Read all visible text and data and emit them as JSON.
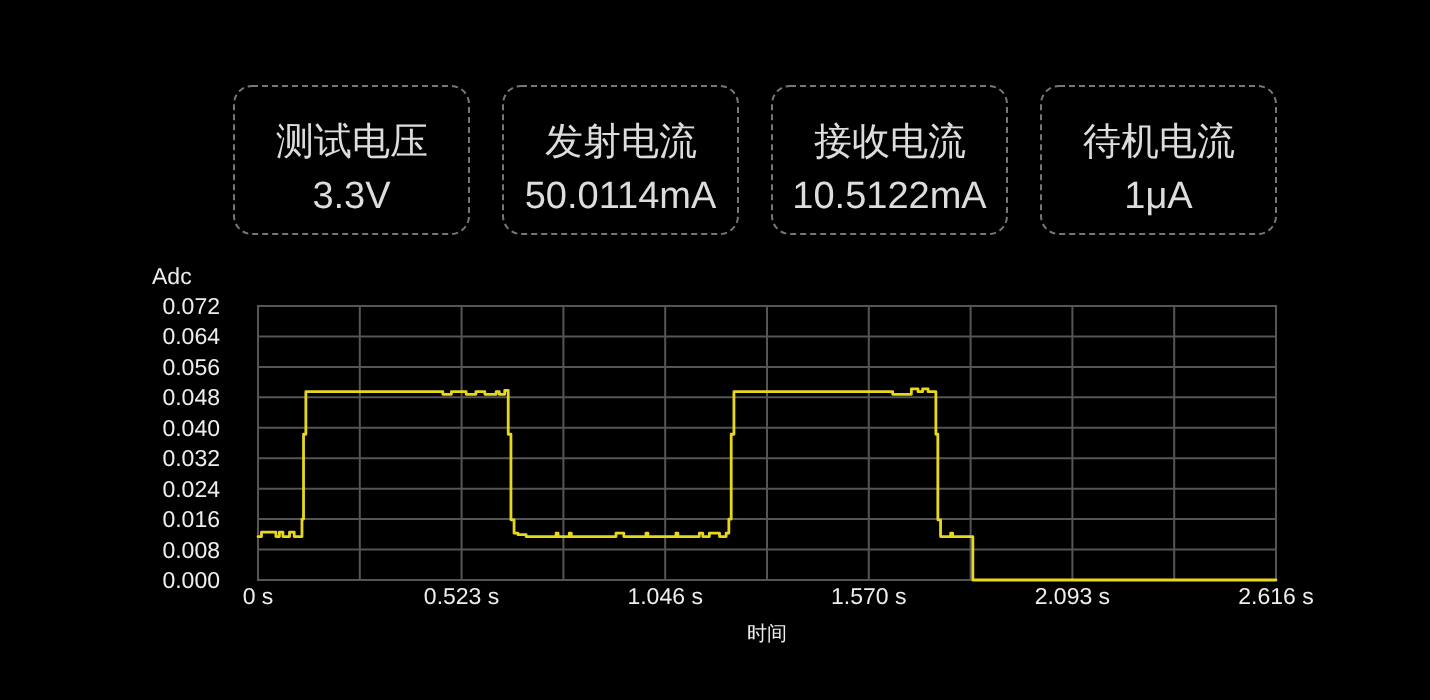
{
  "chart_data": [
    {
      "type": "other",
      "annotations": [
        "测试电压",
        "3.3V",
        "发射电流",
        "50.0114mA",
        "接收电流",
        "10.5122mA",
        "待机电流",
        "1μA"
      ]
    },
    {
      "type": "step",
      "xlabel": "时间",
      "ylabel": "Adc",
      "grid": true,
      "xlim": [
        0,
        2.616
      ],
      "xticks": [
        {
          "value": 0,
          "label": "0 s"
        },
        {
          "value": 0.2616,
          "label": null
        },
        {
          "value": 0.5232,
          "label": "0.523 s"
        },
        {
          "value": 0.7848,
          "label": null
        },
        {
          "value": 1.0464,
          "label": "1.046 s"
        },
        {
          "value": 1.308,
          "label": null
        },
        {
          "value": 1.5696,
          "label": "1.570 s"
        },
        {
          "value": 1.8312,
          "label": null
        },
        {
          "value": 2.0928,
          "label": "2.093 s"
        },
        {
          "value": 2.3544,
          "label": null
        },
        {
          "value": 2.616,
          "label": "2.616 s"
        }
      ],
      "ylim": [
        0,
        0.072
      ],
      "yticks": [
        {
          "value": 0,
          "label": "0.000"
        },
        {
          "value": 0.008,
          "label": "0.008"
        },
        {
          "value": 0.016,
          "label": "0.016"
        },
        {
          "value": 0.024,
          "label": "0.024"
        },
        {
          "value": 0.032,
          "label": "0.032"
        },
        {
          "value": 0.04,
          "label": "0.040"
        },
        {
          "value": 0.048,
          "label": "0.048"
        },
        {
          "value": 0.056,
          "label": "0.056"
        },
        {
          "value": 0.064,
          "label": "0.064"
        },
        {
          "value": 0.072,
          "label": "0.072"
        }
      ],
      "series": [
        {
          "color": "#e8d81c",
          "x": [
            0,
            0.009,
            0.046,
            0.055,
            0.064,
            0.081,
            0.093,
            0.113,
            0.117,
            0.123,
            0.475,
            0.497,
            0.535,
            0.56,
            0.583,
            0.612,
            0.62,
            0.634,
            0.643,
            0.65,
            0.658,
            0.668,
            0.689,
            0.766,
            0.771,
            0.8,
            0.805,
            0.92,
            0.94,
            0.997,
            1.002,
            1.074,
            1.079,
            1.134,
            1.143,
            1.16,
            1.186,
            1.203,
            1.21,
            1.216,
            1.223,
            1.631,
            1.679,
            1.696,
            1.708,
            1.722,
            1.742,
            1.747,
            1.754,
            1.78,
            1.785,
            1.837,
            2.616
          ],
          "values": [
            0.0114,
            0.0126,
            0.0114,
            0.0126,
            0.0114,
            0.0126,
            0.0114,
            0.016,
            0.0383,
            0.0495,
            0.0488,
            0.0495,
            0.0488,
            0.0495,
            0.0488,
            0.0495,
            0.0488,
            0.0498,
            0.0383,
            0.0158,
            0.0123,
            0.0119,
            0.0114,
            0.0123,
            0.0114,
            0.0123,
            0.0114,
            0.0123,
            0.0114,
            0.0123,
            0.0114,
            0.0123,
            0.0114,
            0.0123,
            0.0114,
            0.0123,
            0.0114,
            0.0123,
            0.016,
            0.0383,
            0.0495,
            0.0488,
            0.0502,
            0.0495,
            0.0502,
            0.0495,
            0.0383,
            0.0158,
            0.0114,
            0.0123,
            0.0114,
            0,
            0
          ]
        }
      ]
    }
  ]
}
